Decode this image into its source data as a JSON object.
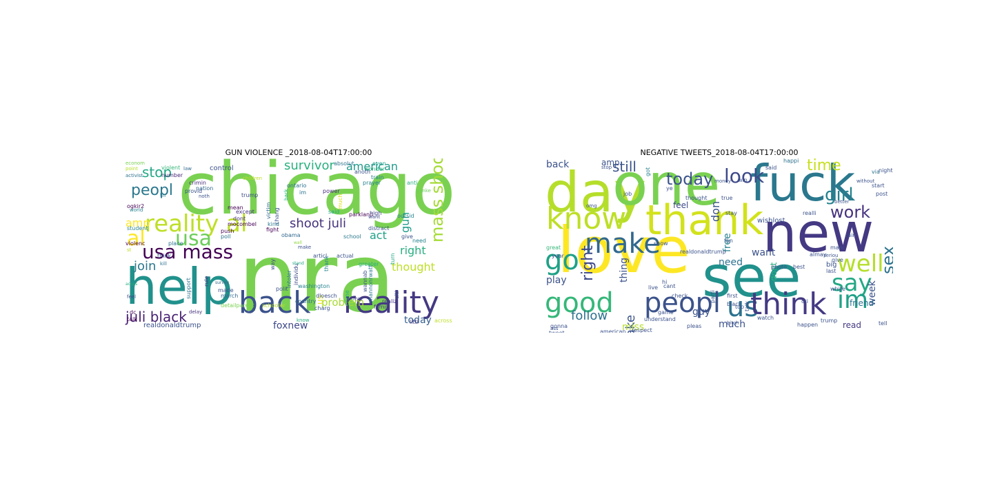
{
  "figures": [
    {
      "title": "GUN VIOLENCE _2018-08-04T17:00:00",
      "words": [
        {
          "t": "nra",
          "c": "#7ad151"
        },
        {
          "t": "chicago",
          "c": "#7ad151"
        },
        {
          "t": "help",
          "c": "#21918c"
        },
        {
          "t": "back",
          "c": "#3b528b"
        },
        {
          "t": "reality",
          "c": "#443983"
        },
        {
          "t": "reality al",
          "c": "#bddf26"
        },
        {
          "t": "usa mass",
          "c": "#440154"
        },
        {
          "t": "al",
          "c": "#fde725"
        },
        {
          "t": "usa",
          "c": "#6ccd5a"
        },
        {
          "t": "mass shoot",
          "c": "#a5db36"
        },
        {
          "t": "peopl",
          "c": "#2a788e"
        },
        {
          "t": "stop",
          "c": "#22a884"
        },
        {
          "t": "survivor",
          "c": "#2ab07f"
        },
        {
          "t": "american",
          "c": "#1f9a8a"
        },
        {
          "t": "shoot juli",
          "c": "#46327e"
        },
        {
          "t": "juli black",
          "c": "#482173"
        },
        {
          "t": "join",
          "c": "#2a788e"
        },
        {
          "t": "right",
          "c": "#28ae80"
        },
        {
          "t": "act",
          "c": "#1fa187"
        },
        {
          "t": "gun",
          "c": "#1e9b8a"
        },
        {
          "t": "thought",
          "c": "#bddf26"
        },
        {
          "t": "problem",
          "c": "#a8db34"
        },
        {
          "t": "today",
          "c": "#355f8d"
        },
        {
          "t": "foxnew",
          "c": "#3e4989"
        },
        {
          "t": "amp",
          "c": "#fde725"
        },
        {
          "t": "us",
          "c": "#e5e419"
        },
        {
          "t": "realdonaldtrump",
          "c": "#3b528b"
        },
        {
          "t": "control",
          "c": "#3b528b"
        },
        {
          "t": "violent",
          "c": "#35b779"
        },
        {
          "t": "number",
          "c": "#482878"
        },
        {
          "t": "nation",
          "c": "#31688e"
        },
        {
          "t": "econom",
          "c": "#7ad151"
        },
        {
          "t": "point",
          "c": "#b5de2b"
        },
        {
          "t": "activist",
          "c": "#2c728e"
        },
        {
          "t": "violenc",
          "c": "#440154"
        },
        {
          "t": "ogkir2",
          "c": "#440154"
        },
        {
          "t": "world",
          "c": "#26828e"
        },
        {
          "t": "crimin",
          "c": "#472d7b"
        },
        {
          "t": "provid",
          "c": "#3b528b"
        },
        {
          "t": "trump",
          "c": "#3e4989"
        },
        {
          "t": "ontario",
          "c": "#2c728e"
        },
        {
          "t": "victim",
          "c": "#31688e"
        },
        {
          "t": "chang",
          "c": "#3b528b"
        },
        {
          "t": "prayer",
          "c": "#26828e"
        },
        {
          "t": "anti",
          "c": "#2ab07f"
        },
        {
          "t": "absolut",
          "c": "#2c728e"
        },
        {
          "t": "even",
          "c": "#1f9e89"
        },
        {
          "t": "wonder",
          "c": "#2ab07f"
        },
        {
          "t": "anoth",
          "c": "#3b528b"
        },
        {
          "t": "train",
          "c": "#26828e"
        },
        {
          "t": "power",
          "c": "#472d7b"
        },
        {
          "t": "parkland",
          "c": "#440154"
        },
        {
          "t": "high",
          "c": "#414487"
        },
        {
          "t": "said",
          "c": "#22a884"
        },
        {
          "t": "outsid",
          "c": "#26828e"
        },
        {
          "t": "distract",
          "c": "#3b528b"
        },
        {
          "t": "give",
          "c": "#3b528b"
        },
        {
          "t": "mocombel",
          "c": "#440154"
        },
        {
          "t": "dont",
          "c": "#46327e"
        },
        {
          "t": "mean",
          "c": "#440154"
        },
        {
          "t": "except",
          "c": "#46327e"
        },
        {
          "t": "poll",
          "c": "#2c728e"
        },
        {
          "t": "kind",
          "c": "#2a788e"
        },
        {
          "t": "fight",
          "c": "#440154"
        },
        {
          "t": "noth",
          "c": "#3b528b"
        },
        {
          "t": "push",
          "c": "#440154"
        },
        {
          "t": "place",
          "c": "#2c728e"
        },
        {
          "t": "think",
          "c": "#3b528b"
        },
        {
          "t": "kill",
          "c": "#2c728e"
        },
        {
          "t": "student",
          "c": "#26828e"
        },
        {
          "t": "obama",
          "c": "#31688e"
        },
        {
          "t": "way",
          "c": "#3e4989"
        },
        {
          "t": "articl",
          "c": "#3b528b"
        },
        {
          "t": "actual",
          "c": "#3b528b"
        },
        {
          "t": "individu",
          "c": "#3e4989"
        },
        {
          "t": "charg",
          "c": "#3b528b"
        },
        {
          "t": "country",
          "c": "#31688e"
        },
        {
          "t": "washington",
          "c": "#26828e"
        },
        {
          "t": "intoler",
          "c": "#2c728e"
        },
        {
          "t": "polit",
          "c": "#3b528b"
        },
        {
          "t": "made",
          "c": "#3b528b"
        },
        {
          "t": "march",
          "c": "#31688e"
        },
        {
          "t": "detailparent",
          "c": "#7ad151"
        },
        {
          "t": "schooler",
          "c": "#b5de2b"
        },
        {
          "t": "dloesch",
          "c": "#3b528b"
        },
        {
          "t": "live",
          "c": "#414487"
        },
        {
          "t": "shannonrwatt",
          "c": "#2a788e"
        },
        {
          "t": "greater",
          "c": "#2ab07f"
        },
        {
          "t": "wannab",
          "c": "#3b528b"
        },
        {
          "t": "citi",
          "c": "#3b528b"
        },
        {
          "t": "realiz",
          "c": "#443983"
        },
        {
          "t": "famili",
          "c": "#443983"
        },
        {
          "t": "littl",
          "c": "#443983"
        },
        {
          "t": "need",
          "c": "#26828e"
        },
        {
          "t": "want",
          "c": "#3e4989"
        },
        {
          "t": "school",
          "c": "#2a788e"
        },
        {
          "t": "crime",
          "c": "#2ab07f"
        },
        {
          "t": "thank",
          "c": "#26828e"
        },
        {
          "t": "turn",
          "c": "#22a884"
        },
        {
          "t": "support",
          "c": "#2c728e"
        },
        {
          "t": "rule",
          "c": "#443983"
        },
        {
          "t": "dc",
          "c": "#440154"
        },
        {
          "t": "talk",
          "c": "#440154"
        },
        {
          "t": "feel",
          "c": "#3e4989"
        },
        {
          "t": "delay",
          "c": "#46327e"
        },
        {
          "t": "law",
          "c": "#31688e"
        },
        {
          "t": "th",
          "c": "#2a788e"
        },
        {
          "t": "im",
          "c": "#2c728e"
        },
        {
          "t": "st",
          "c": "#bddf26"
        },
        {
          "t": "make",
          "c": "#3b528b"
        },
        {
          "t": "know",
          "c": "#2ab07f"
        },
        {
          "t": "much",
          "c": "#dce319"
        },
        {
          "t": "back",
          "c": "#2ab07f"
        },
        {
          "t": "survey",
          "c": "#31688e"
        },
        {
          "t": "children",
          "c": "#bddf26"
        },
        {
          "t": "across",
          "c": "#bddf26"
        },
        {
          "t": "wall",
          "c": "#90d743"
        },
        {
          "t": "yanke",
          "c": "#6ccd5a"
        },
        {
          "t": "stand",
          "c": "#22a884"
        },
        {
          "t": "accus",
          "c": "#2ab07f"
        },
        {
          "t": "grow",
          "c": "#fde725"
        },
        {
          "t": "sell",
          "c": "#3b528b"
        }
      ]
    },
    {
      "title": "NEGATIVE TWEETS_2018-08-04T17:00:00",
      "words": [
        {
          "t": "day",
          "c": "#b5de2b"
        },
        {
          "t": "one",
          "c": "#7ad151"
        },
        {
          "t": "fuck",
          "c": "#2a788e"
        },
        {
          "t": "new",
          "c": "#443983"
        },
        {
          "t": "love",
          "c": "#fde725"
        },
        {
          "t": "see",
          "c": "#21918c"
        },
        {
          "t": "thank",
          "c": "#d2e21b"
        },
        {
          "t": "know",
          "c": "#bddf26"
        },
        {
          "t": "make",
          "c": "#31688e"
        },
        {
          "t": "good",
          "c": "#35b779"
        },
        {
          "t": "peopl",
          "c": "#3b528b"
        },
        {
          "t": "us",
          "c": "#2c728e"
        },
        {
          "t": "think",
          "c": "#443983"
        },
        {
          "t": "say",
          "c": "#22a884"
        },
        {
          "t": "im",
          "c": "#1fa187"
        },
        {
          "t": "well",
          "c": "#b5de2b"
        },
        {
          "t": "go",
          "c": "#1fa187"
        },
        {
          "t": "look",
          "c": "#3e4989"
        },
        {
          "t": "today",
          "c": "#3b528b"
        },
        {
          "t": "still",
          "c": "#3b528b"
        },
        {
          "t": "girl",
          "c": "#26828e"
        },
        {
          "t": "work",
          "c": "#46327e"
        },
        {
          "t": "time",
          "c": "#c8e020"
        },
        {
          "t": "sex",
          "c": "#2c728e"
        },
        {
          "t": "follow",
          "c": "#2c728e"
        },
        {
          "t": "take",
          "c": "#3b528b"
        },
        {
          "t": "right",
          "c": "#3e4989"
        },
        {
          "t": "back",
          "c": "#3b528b"
        },
        {
          "t": "amp",
          "c": "#3b528b"
        },
        {
          "t": "play",
          "c": "#3b528b"
        },
        {
          "t": "miss",
          "c": "#b5de2b"
        },
        {
          "t": "much",
          "c": "#3b528b"
        },
        {
          "t": "read",
          "c": "#443983"
        },
        {
          "t": "week",
          "c": "#3b528b"
        },
        {
          "t": "friend",
          "c": "#2c728e"
        },
        {
          "t": "need",
          "c": "#2c728e"
        },
        {
          "t": "want",
          "c": "#3b528b"
        },
        {
          "t": "thing",
          "c": "#3b528b"
        },
        {
          "t": "feel",
          "c": "#3e4989"
        },
        {
          "t": "guy",
          "c": "#3b528b"
        },
        {
          "t": "don",
          "c": "#3b528b"
        },
        {
          "t": "free",
          "c": "#26828e"
        },
        {
          "t": "got",
          "c": "#26828e"
        },
        {
          "t": "dont",
          "c": "#2ab07f"
        },
        {
          "t": "wishlost",
          "c": "#3b528b"
        },
        {
          "t": "realdonaldtrump",
          "c": "#3b528b"
        },
        {
          "t": "photo",
          "c": "#3b528b"
        },
        {
          "t": "best",
          "c": "#3b528b"
        },
        {
          "t": "big",
          "c": "#3b528b"
        },
        {
          "t": "great",
          "c": "#35b779"
        },
        {
          "t": "show",
          "c": "#3b528b"
        },
        {
          "t": "year",
          "c": "#3e4989"
        },
        {
          "t": "gonna",
          "c": "#3b528b"
        },
        {
          "t": "cant",
          "c": "#3b528b"
        },
        {
          "t": "check",
          "c": "#3b528b"
        },
        {
          "t": "job",
          "c": "#3b528b"
        },
        {
          "t": "thought",
          "c": "#3b528b"
        },
        {
          "t": "said",
          "c": "#3b528b"
        },
        {
          "t": "happi",
          "c": "#2c728e"
        },
        {
          "t": "start",
          "c": "#3b528b"
        },
        {
          "t": "via",
          "c": "#2c728e"
        },
        {
          "t": "post",
          "c": "#3b528b"
        },
        {
          "t": "black",
          "c": "#3b528b"
        },
        {
          "t": "watch",
          "c": "#3b528b"
        },
        {
          "t": "white",
          "c": "#3b528b"
        },
        {
          "t": "trump",
          "c": "#3b528b"
        },
        {
          "t": "give",
          "c": "#3b528b"
        },
        {
          "t": "last",
          "c": "#3b528b"
        },
        {
          "t": "cri",
          "c": "#3b528b"
        },
        {
          "t": "first",
          "c": "#3b528b"
        },
        {
          "t": "talk",
          "c": "#3b528b"
        },
        {
          "t": "tell",
          "c": "#3b528b"
        },
        {
          "t": "ye",
          "c": "#3b528b"
        },
        {
          "t": "fan",
          "c": "#3b528b"
        },
        {
          "t": "hi",
          "c": "#3b528b"
        },
        {
          "t": "win",
          "c": "#3b528b"
        },
        {
          "t": "realli",
          "c": "#3b528b"
        },
        {
          "t": "pleas",
          "c": "#3b528b"
        },
        {
          "t": "tweet",
          "c": "#3b528b"
        },
        {
          "t": "respect",
          "c": "#3b528b"
        },
        {
          "t": "american",
          "c": "#3b528b"
        },
        {
          "t": "understand",
          "c": "#3b528b"
        },
        {
          "t": "happen",
          "c": "#3b528b"
        },
        {
          "t": "bitch",
          "c": "#3b528b"
        },
        {
          "t": "game",
          "c": "#3b528b"
        },
        {
          "t": "true",
          "c": "#3b528b"
        },
        {
          "t": "rain",
          "c": "#3b528b"
        },
        {
          "t": "stay",
          "c": "#3b528b"
        },
        {
          "t": "top",
          "c": "#3b528b"
        },
        {
          "t": "mani",
          "c": "#3b528b"
        },
        {
          "t": "parti",
          "c": "#3b528b"
        },
        {
          "t": "live",
          "c": "#3b528b"
        },
        {
          "t": "almay",
          "c": "#3b528b"
        },
        {
          "t": "seriou",
          "c": "#3b528b"
        },
        {
          "t": "night",
          "c": "#3b528b"
        },
        {
          "t": "without",
          "c": "#3b528b"
        },
        {
          "t": "ass",
          "c": "#3b528b"
        },
        {
          "t": "omg",
          "c": "#3b528b"
        },
        {
          "t": "stop",
          "c": "#3b528b"
        },
        {
          "t": "money",
          "c": "#3b528b"
        },
        {
          "t": "better",
          "c": "#3b528b"
        }
      ]
    }
  ]
}
